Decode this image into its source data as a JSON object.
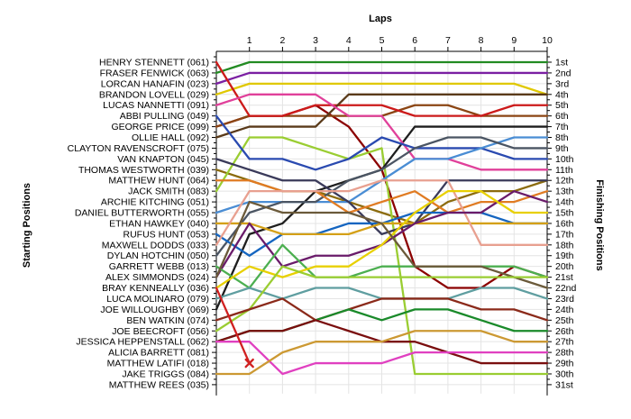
{
  "chart_data": {
    "type": "line",
    "title": "",
    "xlabel": "Laps",
    "ylabel_left": "Starting Positions",
    "ylabel_right": "Finishing Positions",
    "x": [
      0,
      1,
      2,
      3,
      4,
      5,
      6,
      7,
      8,
      9,
      10
    ],
    "x_tick_labels": [
      "1",
      "2",
      "3",
      "4",
      "5",
      "6",
      "7",
      "8",
      "9",
      "10"
    ],
    "finishing_labels": [
      "1st",
      "2nd",
      "3rd",
      "4th",
      "5th",
      "6th",
      "7th",
      "8th",
      "9th",
      "10th",
      "11th",
      "12th",
      "13th",
      "14th",
      "15th",
      "16th",
      "17th",
      "18th",
      "19th",
      "20th",
      "21st",
      "22nd",
      "23rd",
      "24th",
      "25th",
      "26th",
      "27th",
      "28th",
      "29th",
      "30th",
      "31st"
    ],
    "grid": true,
    "retired_marker": "x",
    "series": [
      {
        "name": "HENRY STENNETT (061)",
        "color": "#228b22",
        "values": [
          2,
          1,
          1,
          1,
          1,
          1,
          1,
          1,
          1,
          1,
          1
        ]
      },
      {
        "name": "FRASER FENWICK (063)",
        "color": "#7b1fa2",
        "values": [
          3,
          2,
          2,
          2,
          2,
          2,
          2,
          2,
          2,
          2,
          2
        ]
      },
      {
        "name": "LORCAN HANAFIN (023)",
        "color": "#8b6b0d",
        "values": [
          11,
          12,
          13,
          13,
          14,
          15,
          16,
          14,
          13,
          13,
          12
        ]
      },
      {
        "name": "BRANDON LOVELL (029)",
        "color": "#e0c800",
        "values": [
          4,
          3,
          3,
          3,
          3,
          3,
          3,
          3,
          3,
          3,
          4
        ]
      },
      {
        "name": "LUCAS NANNETTI (091)",
        "color": "#8b0000",
        "values": [
          7,
          6,
          6,
          5,
          7,
          11,
          20,
          22,
          22,
          20,
          21
        ]
      },
      {
        "name": "ABBI PULLING (049)",
        "color": "#8b4513",
        "values": [
          7,
          6,
          6,
          6,
          6,
          6,
          5,
          5,
          6,
          6,
          6
        ]
      },
      {
        "name": "GEORGE PRICE (099)",
        "color": "#cc1a1a",
        "values": [
          1,
          6,
          6,
          5,
          5,
          5,
          6,
          6,
          6,
          5,
          5
        ]
      },
      {
        "name": "OLLIE HALL (092)",
        "color": "#9acd32",
        "values": [
          13,
          8,
          8,
          9,
          10,
          9,
          30,
          30,
          30,
          30,
          30
        ]
      },
      {
        "name": "CLAYTON RAVENSCROFT (075)",
        "color": "#5a3a1a",
        "values": [
          8,
          7,
          7,
          7,
          4,
          4,
          4,
          4,
          4,
          4,
          4
        ]
      },
      {
        "name": "VAN KNAPTON (045)",
        "color": "#1e1e1e",
        "values": [
          24,
          17,
          16,
          13,
          12,
          11,
          7,
          7,
          7,
          7,
          7
        ]
      },
      {
        "name": "THOMAS WESTWORTH (039)",
        "color": "#e0409a",
        "values": [
          5,
          4,
          4,
          4,
          6,
          6,
          10,
          10,
          11,
          11,
          11
        ]
      },
      {
        "name": "MATTHEW HUNT (064)",
        "color": "#2a4ab0",
        "values": [
          6,
          10,
          10,
          11,
          10,
          8,
          9,
          9,
          9,
          10,
          10
        ]
      },
      {
        "name": "JACK SMITH (083)",
        "color": "#4a8dd4",
        "values": [
          15,
          14,
          14,
          14,
          14,
          12,
          10,
          10,
          9,
          8,
          8
        ]
      },
      {
        "name": "ARCHIE KITCHING (051)",
        "color": "#3a3a5a",
        "values": [
          10,
          11,
          12,
          12,
          14,
          17,
          16,
          12,
          12,
          12,
          12
        ]
      },
      {
        "name": "DANIEL BUTTERWORTH (055)",
        "color": "#4b5563",
        "values": [
          19,
          15,
          14,
          14,
          12,
          11,
          9,
          8,
          8,
          9,
          9
        ]
      },
      {
        "name": "ETHAN HAWKEY (040)",
        "color": "#e07b22",
        "values": [
          12,
          12,
          13,
          13,
          15,
          14,
          13,
          15,
          14,
          14,
          13
        ]
      },
      {
        "name": "RUFUS HUNT (053)",
        "color": "#1565c0",
        "values": [
          17,
          19,
          17,
          17,
          16,
          16,
          15,
          15,
          15,
          16,
          16
        ]
      },
      {
        "name": "MAXWELL DODDS (033)",
        "color": "#d4a017",
        "values": [
          16,
          16,
          17,
          17,
          17,
          16,
          16,
          16,
          16,
          16,
          16
        ]
      },
      {
        "name": "DYLAN HOTCHIN (050)",
        "color": "#e8a090",
        "values": [
          18,
          13,
          13,
          13,
          13,
          12,
          12,
          12,
          18,
          18,
          18
        ]
      },
      {
        "name": "GARRETT WEBB (013)",
        "color": "#6a1b6a",
        "values": [
          21,
          16,
          20,
          19,
          19,
          18,
          16,
          15,
          15,
          13,
          14
        ]
      },
      {
        "name": "ALEX SIMMONDS (024)",
        "color": "#4caf50",
        "values": [
          20,
          22,
          18,
          21,
          21,
          20,
          20,
          20,
          20,
          20,
          21
        ]
      },
      {
        "name": "BRAY KENNEALLY (036)",
        "color": "#e8d000",
        "values": [
          22,
          20,
          21,
          20,
          20,
          18,
          15,
          13,
          13,
          15,
          15
        ]
      },
      {
        "name": "LUCA MOLINARO (079)",
        "color": "#6b5a3a",
        "values": [
          21,
          14,
          15,
          15,
          15,
          16,
          20,
          20,
          20,
          21,
          22
        ]
      },
      {
        "name": "JOE WILLOUGHBY (069)",
        "color": "#5f9ea0",
        "values": [
          23,
          22,
          23,
          22,
          22,
          23,
          23,
          23,
          22,
          22,
          23
        ]
      },
      {
        "name": "BEN WATKIN (074)",
        "color": "#9acd32",
        "values": [
          26,
          24,
          20,
          21,
          21,
          21,
          21,
          21,
          21,
          21,
          21
        ]
      },
      {
        "name": "JOE BEECROFT (056)",
        "color": "#8b2a1a",
        "values": [
          25,
          24,
          23,
          25,
          24,
          23,
          23,
          23,
          24,
          24,
          25
        ]
      },
      {
        "name": "JESSICA HEPPENSTALL (062)",
        "color": "#1a8a2a",
        "values": [
          27,
          26,
          26,
          25,
          24,
          25,
          24,
          24,
          25,
          26,
          26
        ]
      },
      {
        "name": "ALICIA BARRETT (081)",
        "color": "#7a0e0e",
        "values": [
          27,
          26,
          26,
          25,
          26,
          27,
          27,
          28,
          29,
          29,
          29
        ]
      },
      {
        "name": "MATTHEW LATIFI (018)",
        "color": "#e040c0",
        "values": [
          27,
          27,
          30,
          29,
          29,
          29,
          28,
          28,
          28,
          28,
          28
        ]
      },
      {
        "name": "JAKE TRIGGS (084)",
        "color": "#cc9933",
        "values": [
          30,
          30,
          28,
          27,
          27,
          27,
          26,
          26,
          26,
          27,
          27
        ]
      },
      {
        "name": "MATTHEW REES (035)",
        "color": "#d02020",
        "values": [
          22,
          29,
          null,
          null,
          null,
          null,
          null,
          null,
          null,
          null,
          null
        ]
      }
    ]
  }
}
